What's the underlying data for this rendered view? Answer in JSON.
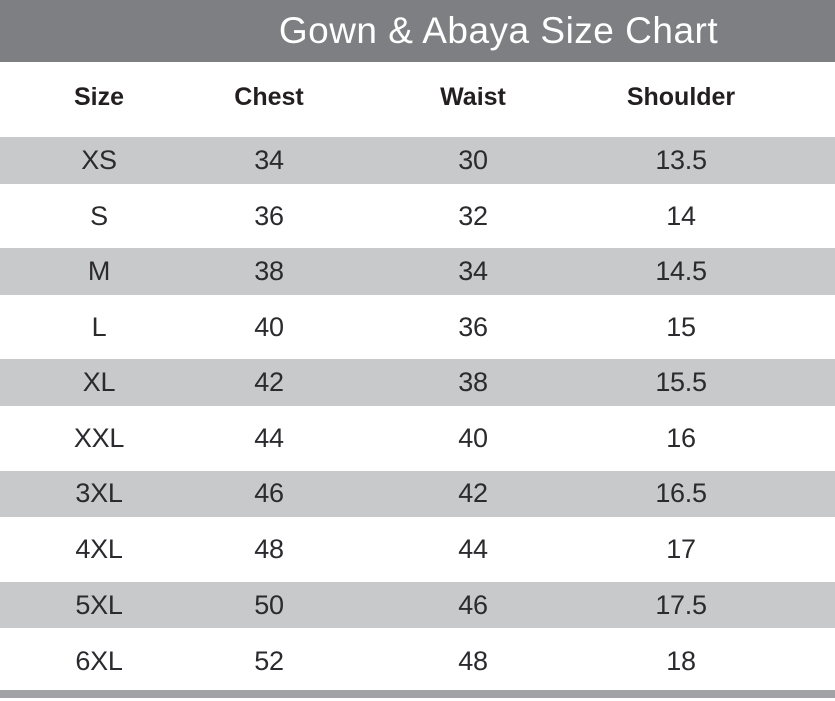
{
  "title": "Gown & Abaya Size Chart",
  "chart_data": {
    "type": "table",
    "title": "Gown & Abaya Size Chart",
    "columns": [
      "Size",
      "Chest",
      "Waist",
      "Shoulder"
    ],
    "rows": [
      [
        "XS",
        "34",
        "30",
        "13.5"
      ],
      [
        "S",
        "36",
        "32",
        "14"
      ],
      [
        "M",
        "38",
        "34",
        "14.5"
      ],
      [
        "L",
        "40",
        "36",
        "15"
      ],
      [
        "XL",
        "42",
        "38",
        "15.5"
      ],
      [
        "XXL",
        "44",
        "40",
        "16"
      ],
      [
        "3XL",
        "46",
        "42",
        "16.5"
      ],
      [
        "4XL",
        "48",
        "44",
        "17"
      ],
      [
        "5XL",
        "50",
        "46",
        "17.5"
      ],
      [
        "6XL",
        "52",
        "48",
        "18"
      ]
    ],
    "layout": {
      "striped_row_indices": [
        0,
        2,
        4,
        6,
        8
      ],
      "grid": "off",
      "legend": "none"
    }
  },
  "colors": {
    "banner_background": "#7d7f82",
    "stripe_background": "#c8c9cb",
    "bottom_bar": "#a0a2a5",
    "title_text": "#ffffff",
    "header_text": "#231f20",
    "data_text": "#2b2a2e",
    "page_background": "#ffffff"
  }
}
